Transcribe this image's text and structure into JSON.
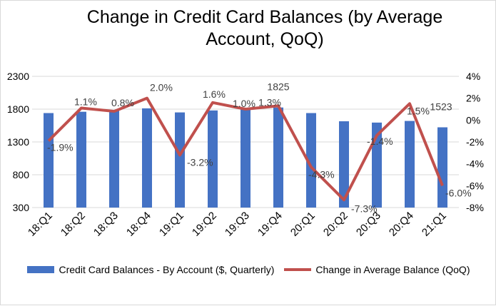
{
  "chart_data": {
    "type": "bar",
    "title_lines": [
      "Change in Credit Card Balances (by Average",
      "Account, QoQ)"
    ],
    "categories": [
      "18:Q1",
      "18:Q2",
      "18:Q3",
      "18:Q4",
      "19:Q1",
      "19:Q2",
      "19:Q3",
      "19:Q4",
      "20:Q1",
      "20:Q2",
      "20:Q3",
      "20:Q4",
      "21:Q1"
    ],
    "series": [
      {
        "name": "Credit Card Balances - By Account ($, Quarterly)",
        "type": "bar",
        "axis": "left",
        "color": "#4472c4",
        "values": [
          1740,
          1760,
          1775,
          1812,
          1750,
          1780,
          1800,
          1825,
          1740,
          1615,
          1595,
          1620,
          1523
        ]
      },
      {
        "name": "Change in Average Balance (QoQ)",
        "type": "line",
        "axis": "right",
        "color": "#c0504d",
        "values": [
          -1.9,
          1.1,
          0.8,
          2.0,
          -3.2,
          1.6,
          1.0,
          1.3,
          -4.3,
          -7.3,
          -1.4,
          1.5,
          -6.0
        ]
      }
    ],
    "bar_labels": [
      {
        "index": 7,
        "text": "1825"
      },
      {
        "index": 12,
        "text": "1523"
      }
    ],
    "line_labels": [
      "-1.9%",
      "1.1%",
      "0.8%",
      "2.0%",
      "-3.2%",
      "1.6%",
      "1.0%",
      "1.3%",
      "-4.3%",
      "-7.3%",
      "-1.4%",
      "1.5%",
      "-6.0%"
    ],
    "y_left": {
      "ticks": [
        "2300",
        "1800",
        "1300",
        "800",
        "300"
      ],
      "min": 300,
      "max": 2300
    },
    "y_right": {
      "ticks": [
        "4%",
        "2%",
        "0%",
        "-2%",
        "-4%",
        "-6%",
        "-8%"
      ],
      "min": -8,
      "max": 4
    },
    "grid": true,
    "legend_position": "bottom"
  }
}
